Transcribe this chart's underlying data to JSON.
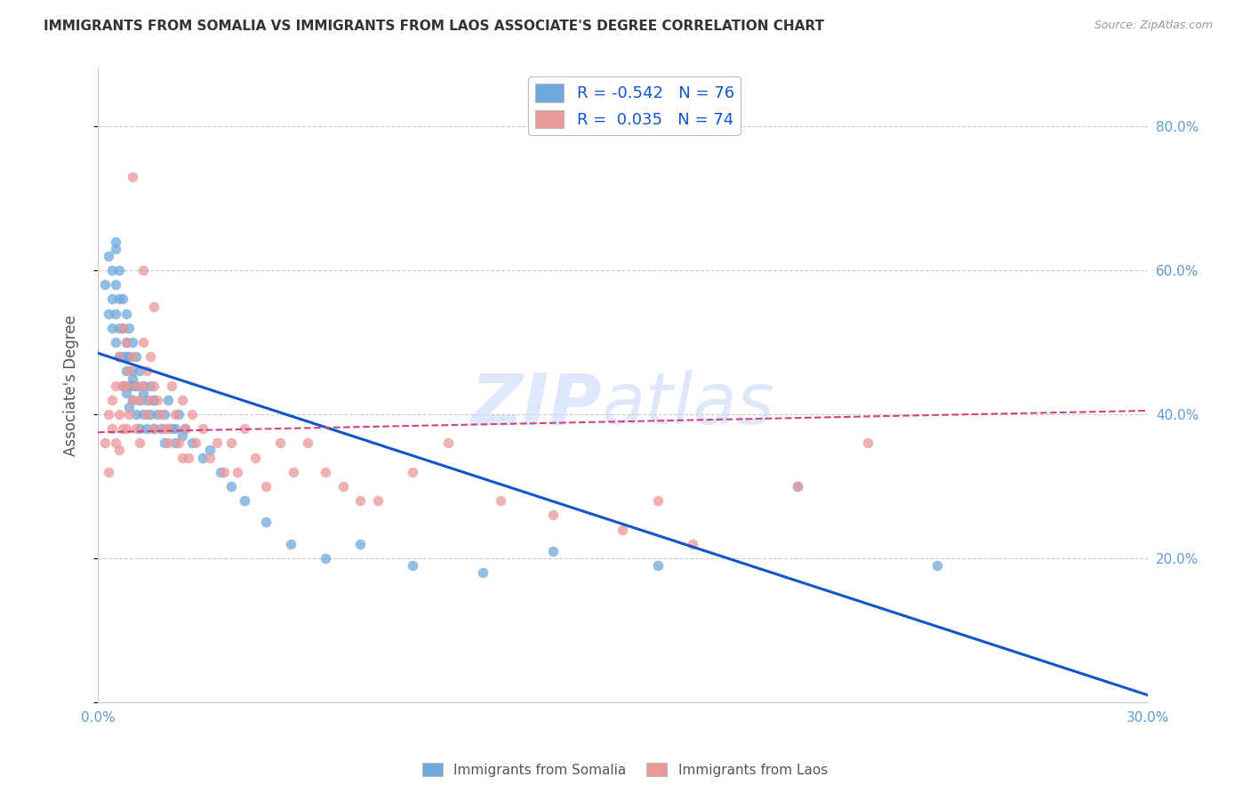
{
  "title": "IMMIGRANTS FROM SOMALIA VS IMMIGRANTS FROM LAOS ASSOCIATE'S DEGREE CORRELATION CHART",
  "source": "Source: ZipAtlas.com",
  "ylabel": "Associate's Degree",
  "right_yticks": [
    "80.0%",
    "60.0%",
    "40.0%",
    "20.0%"
  ],
  "right_ytick_vals": [
    0.8,
    0.6,
    0.4,
    0.2
  ],
  "xlim": [
    0.0,
    0.3
  ],
  "ylim": [
    0.0,
    0.88
  ],
  "somalia_color": "#6fa8dc",
  "laos_color": "#ea9999",
  "somalia_line_color": "#1155cc",
  "laos_line_color": "#cc4488",
  "somalia_trend_x": [
    0.0,
    0.3
  ],
  "somalia_trend_y": [
    0.485,
    0.01
  ],
  "laos_trend_x": [
    0.0,
    0.3
  ],
  "laos_trend_y": [
    0.375,
    0.405
  ],
  "somalia_scatter_x": [
    0.002,
    0.003,
    0.003,
    0.004,
    0.004,
    0.004,
    0.005,
    0.005,
    0.005,
    0.005,
    0.006,
    0.006,
    0.006,
    0.006,
    0.007,
    0.007,
    0.007,
    0.007,
    0.008,
    0.008,
    0.008,
    0.008,
    0.009,
    0.009,
    0.009,
    0.009,
    0.01,
    0.01,
    0.01,
    0.01,
    0.011,
    0.011,
    0.011,
    0.012,
    0.012,
    0.012,
    0.013,
    0.013,
    0.014,
    0.014,
    0.015,
    0.015,
    0.016,
    0.016,
    0.017,
    0.018,
    0.019,
    0.02,
    0.021,
    0.022,
    0.023,
    0.024,
    0.025,
    0.027,
    0.03,
    0.032,
    0.035,
    0.038,
    0.042,
    0.048,
    0.055,
    0.065,
    0.075,
    0.09,
    0.11,
    0.13,
    0.16,
    0.2,
    0.24,
    0.005,
    0.008,
    0.01,
    0.013,
    0.016,
    0.019,
    0.022
  ],
  "somalia_scatter_y": [
    0.58,
    0.62,
    0.54,
    0.6,
    0.56,
    0.52,
    0.64,
    0.58,
    0.54,
    0.5,
    0.6,
    0.56,
    0.52,
    0.48,
    0.56,
    0.52,
    0.48,
    0.44,
    0.54,
    0.5,
    0.46,
    0.43,
    0.52,
    0.48,
    0.44,
    0.41,
    0.5,
    0.46,
    0.42,
    0.45,
    0.48,
    0.44,
    0.4,
    0.46,
    0.42,
    0.38,
    0.44,
    0.4,
    0.42,
    0.38,
    0.4,
    0.44,
    0.38,
    0.42,
    0.4,
    0.38,
    0.36,
    0.42,
    0.38,
    0.36,
    0.4,
    0.37,
    0.38,
    0.36,
    0.34,
    0.35,
    0.32,
    0.3,
    0.28,
    0.25,
    0.22,
    0.2,
    0.22,
    0.19,
    0.18,
    0.21,
    0.19,
    0.3,
    0.19,
    0.63,
    0.48,
    0.44,
    0.43,
    0.42,
    0.4,
    0.38
  ],
  "laos_scatter_x": [
    0.002,
    0.003,
    0.003,
    0.004,
    0.004,
    0.005,
    0.005,
    0.006,
    0.006,
    0.006,
    0.007,
    0.007,
    0.007,
    0.008,
    0.008,
    0.008,
    0.009,
    0.009,
    0.01,
    0.01,
    0.011,
    0.011,
    0.012,
    0.012,
    0.013,
    0.013,
    0.014,
    0.014,
    0.015,
    0.015,
    0.016,
    0.016,
    0.017,
    0.018,
    0.019,
    0.02,
    0.021,
    0.022,
    0.023,
    0.024,
    0.025,
    0.026,
    0.027,
    0.028,
    0.03,
    0.032,
    0.034,
    0.036,
    0.038,
    0.04,
    0.042,
    0.045,
    0.048,
    0.052,
    0.056,
    0.06,
    0.065,
    0.07,
    0.075,
    0.08,
    0.09,
    0.1,
    0.115,
    0.13,
    0.15,
    0.17,
    0.2,
    0.22,
    0.16,
    0.01,
    0.013,
    0.016,
    0.02,
    0.024
  ],
  "laos_scatter_y": [
    0.36,
    0.4,
    0.32,
    0.38,
    0.42,
    0.44,
    0.36,
    0.48,
    0.4,
    0.35,
    0.52,
    0.44,
    0.38,
    0.5,
    0.44,
    0.38,
    0.46,
    0.4,
    0.48,
    0.42,
    0.44,
    0.38,
    0.42,
    0.36,
    0.5,
    0.44,
    0.46,
    0.4,
    0.48,
    0.42,
    0.44,
    0.38,
    0.42,
    0.4,
    0.38,
    0.36,
    0.44,
    0.4,
    0.36,
    0.42,
    0.38,
    0.34,
    0.4,
    0.36,
    0.38,
    0.34,
    0.36,
    0.32,
    0.36,
    0.32,
    0.38,
    0.34,
    0.3,
    0.36,
    0.32,
    0.36,
    0.32,
    0.3,
    0.28,
    0.28,
    0.32,
    0.36,
    0.28,
    0.26,
    0.24,
    0.22,
    0.3,
    0.36,
    0.28,
    0.73,
    0.6,
    0.55,
    0.38,
    0.34
  ]
}
